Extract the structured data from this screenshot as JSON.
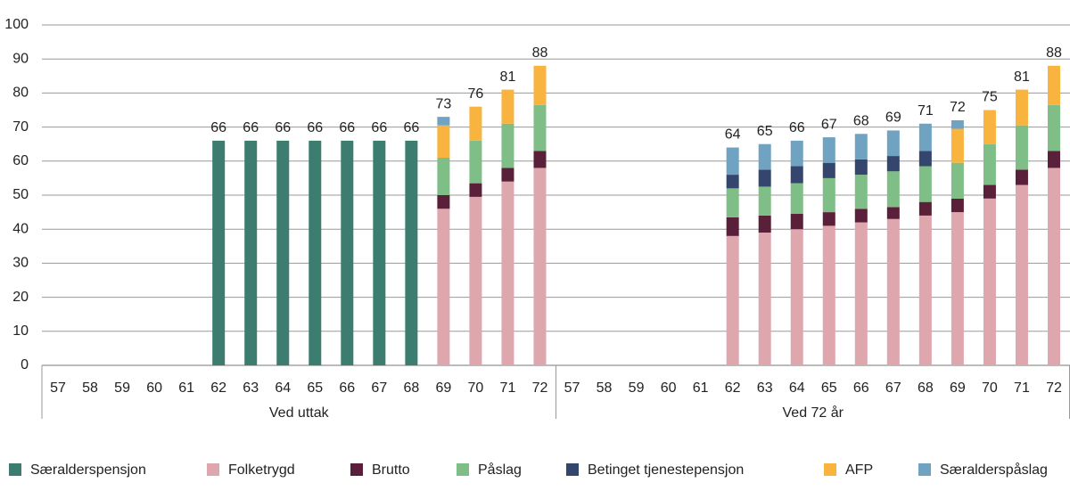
{
  "chart_data": {
    "type": "stacked-bar",
    "groups": [
      "Ved uttak",
      "Ved 72 år"
    ],
    "categories": [
      "57",
      "58",
      "59",
      "60",
      "61",
      "62",
      "63",
      "64",
      "65",
      "66",
      "67",
      "68",
      "69",
      "70",
      "71",
      "72",
      "57",
      "58",
      "59",
      "60",
      "61",
      "62",
      "63",
      "64",
      "65",
      "66",
      "67",
      "68",
      "69",
      "70",
      "71",
      "72"
    ],
    "series": [
      {
        "name": "Særalderspensjon",
        "color": "#3c7d70",
        "values": [
          null,
          null,
          null,
          null,
          null,
          66,
          66,
          66,
          66,
          66,
          66,
          66,
          null,
          null,
          null,
          null,
          null,
          null,
          null,
          null,
          null,
          null,
          null,
          null,
          null,
          null,
          null,
          null,
          null,
          null,
          null,
          null
        ]
      },
      {
        "name": "Folketrygd",
        "color": "#dea6ad",
        "values": [
          null,
          null,
          null,
          null,
          null,
          null,
          null,
          null,
          null,
          null,
          null,
          null,
          46,
          49.5,
          54,
          58,
          null,
          null,
          null,
          null,
          null,
          38,
          39,
          40,
          41,
          42,
          43,
          44,
          45,
          49,
          53,
          58
        ]
      },
      {
        "name": "Brutto",
        "color": "#5b2039",
        "values": [
          null,
          null,
          null,
          null,
          null,
          null,
          null,
          null,
          null,
          null,
          null,
          null,
          4,
          4,
          4,
          5,
          null,
          null,
          null,
          null,
          null,
          5.5,
          5,
          4.5,
          4,
          4,
          3.5,
          4,
          4,
          4,
          4.5,
          5
        ]
      },
      {
        "name": "Påslag",
        "color": "#7fbf87",
        "values": [
          null,
          null,
          null,
          null,
          null,
          null,
          null,
          null,
          null,
          null,
          null,
          null,
          11,
          12.5,
          13,
          13.5,
          null,
          null,
          null,
          null,
          null,
          8.5,
          8.5,
          9,
          10,
          10,
          10.5,
          10.5,
          10.5,
          12,
          13,
          13.5
        ]
      },
      {
        "name": "Betinget tjenestepensjon",
        "color": "#34456e",
        "values": [
          null,
          null,
          null,
          null,
          null,
          null,
          null,
          null,
          null,
          null,
          null,
          null,
          null,
          null,
          null,
          null,
          null,
          null,
          null,
          null,
          null,
          4,
          5,
          5,
          4.5,
          4.5,
          4.5,
          4.5,
          null,
          null,
          null,
          null
        ]
      },
      {
        "name": "AFP",
        "color": "#f9b440",
        "values": [
          null,
          null,
          null,
          null,
          null,
          null,
          null,
          null,
          null,
          null,
          null,
          null,
          9.5,
          10,
          10,
          11.5,
          null,
          null,
          null,
          null,
          null,
          null,
          null,
          null,
          null,
          null,
          null,
          null,
          10,
          10,
          10.5,
          11.5
        ]
      },
      {
        "name": "Særalderspåslag",
        "color": "#6fa3c1",
        "values": [
          null,
          null,
          null,
          null,
          null,
          null,
          null,
          null,
          null,
          null,
          null,
          null,
          2.5,
          null,
          null,
          null,
          null,
          null,
          null,
          null,
          null,
          8,
          7.5,
          7.5,
          7.5,
          7.5,
          7.5,
          8,
          2.5,
          null,
          null,
          null
        ]
      }
    ],
    "total_labels": [
      null,
      null,
      null,
      null,
      null,
      66,
      66,
      66,
      66,
      66,
      66,
      66,
      73,
      76,
      81,
      88,
      null,
      null,
      null,
      null,
      null,
      64,
      65,
      66,
      67,
      68,
      69,
      71,
      72,
      75,
      81,
      88
    ],
    "ylim": [
      0,
      100
    ],
    "yticks": [
      0,
      10,
      20,
      30,
      40,
      50,
      60,
      70,
      80,
      90,
      100
    ],
    "grid": true
  }
}
